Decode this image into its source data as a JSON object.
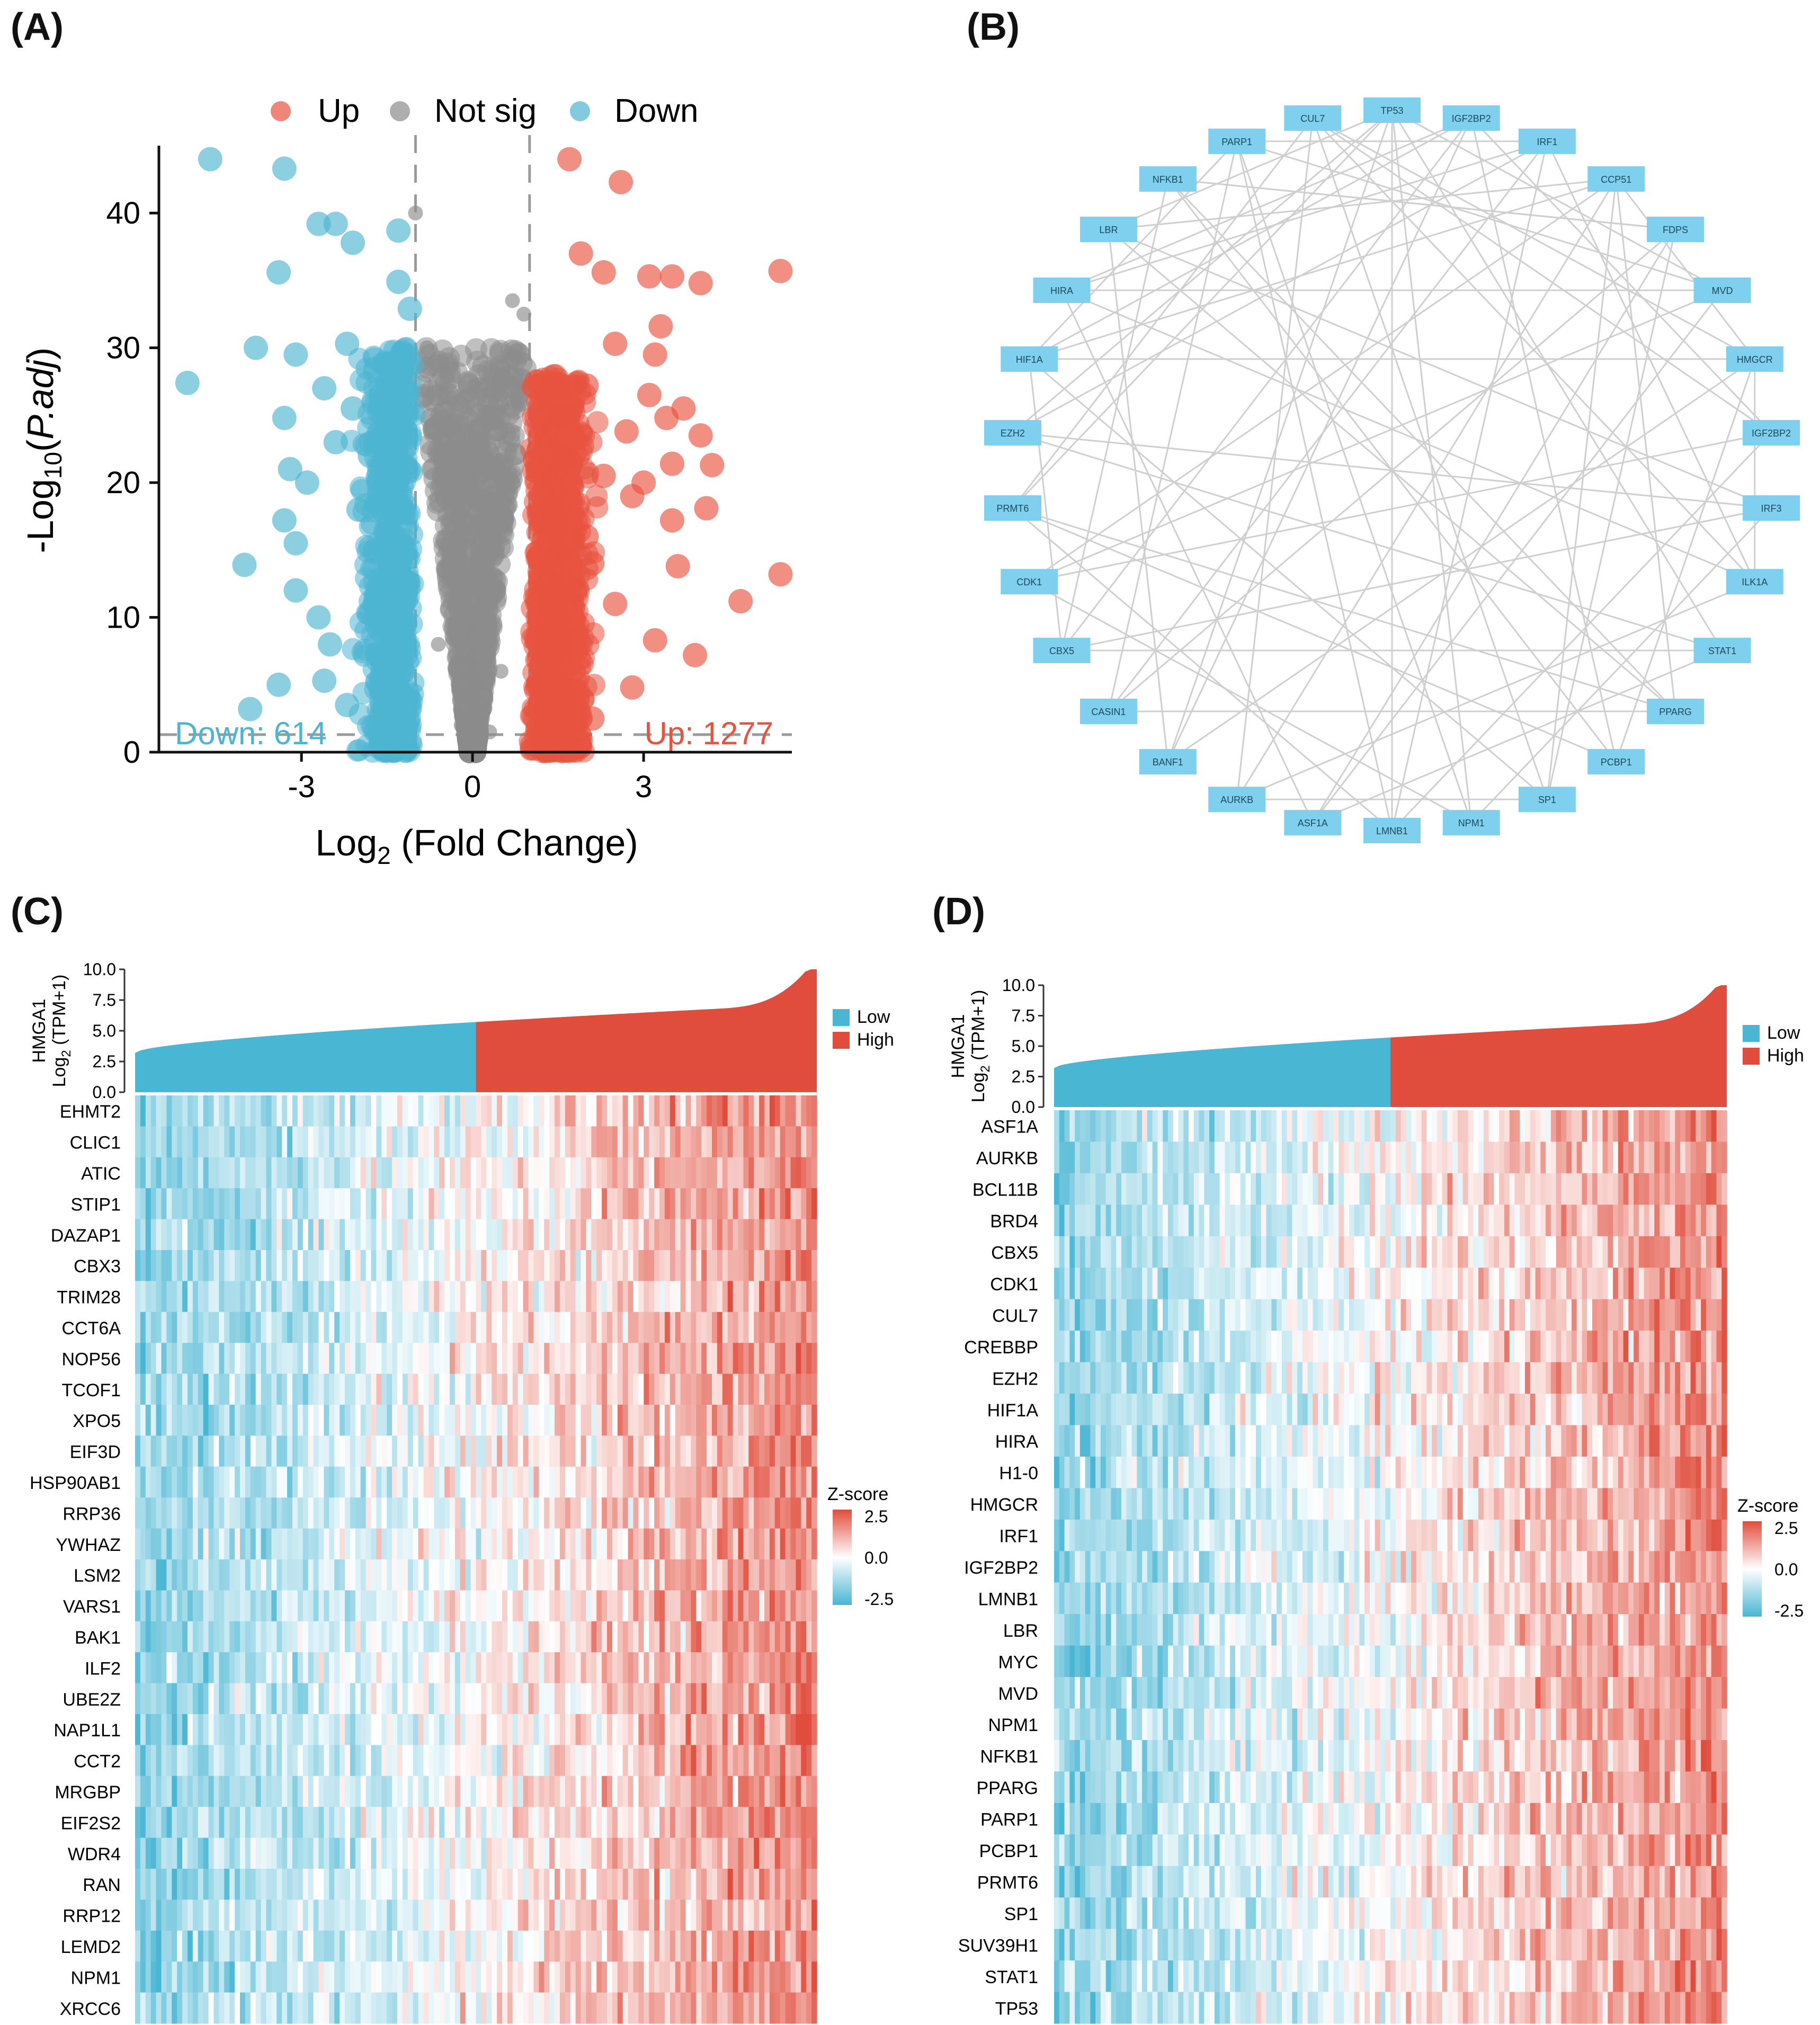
{
  "panel_tags": {
    "a": "(A)",
    "b": "(B)",
    "c": "(C)",
    "d": "(D)"
  },
  "colors": {
    "up": "#E8533F",
    "not_sig": "#8C8C8C",
    "down": "#4DB5D1",
    "low": "#49B6D3",
    "high": "#E04D3C",
    "node": "#7FCFEF"
  },
  "chart_data": [
    {
      "id": "volcano",
      "type": "scatter",
      "legend": {
        "items": [
          "Up",
          "Not sig",
          "Down"
        ],
        "placement": "top"
      },
      "xlabel_base": "Log",
      "xlabel_sub": "2",
      "xlabel_rest": " (Fold Change)",
      "ylabel_base": "-Log",
      "ylabel_sub": "10",
      "ylabel_rest": "P.adj",
      "xlim": [
        -5.5,
        5.6
      ],
      "ylim": [
        0,
        45
      ],
      "xticks": [
        -3,
        0,
        3
      ],
      "yticks": [
        0,
        10,
        20,
        30,
        40
      ],
      "thresholds": {
        "x": [
          -1,
          1
        ],
        "y": 1.3
      },
      "annotations": {
        "down": "Down: 614",
        "up": "Up: 1277"
      },
      "grid": false,
      "series": [
        {
          "name": "Up",
          "points": [
            [
              1.7,
              44
            ],
            [
              2.6,
              42.3
            ],
            [
              1.9,
              37
            ],
            [
              2.3,
              35.6
            ],
            [
              3.1,
              35.3
            ],
            [
              3.5,
              35.3
            ],
            [
              4.0,
              34.8
            ],
            [
              5.4,
              35.7
            ],
            [
              3.3,
              31.6
            ],
            [
              2.5,
              30.3
            ],
            [
              3.2,
              29.5
            ],
            [
              2.0,
              27.2
            ],
            [
              3.1,
              26.5
            ],
            [
              3.7,
              25.5
            ],
            [
              3.4,
              24.8
            ],
            [
              4.0,
              23.5
            ],
            [
              4.2,
              21.3
            ],
            [
              3.5,
              21.4
            ],
            [
              4.1,
              18.1
            ],
            [
              2.8,
              19.0
            ],
            [
              3.5,
              17.2
            ],
            [
              2.0,
              16.0
            ],
            [
              3.6,
              13.8
            ],
            [
              5.4,
              13.2
            ],
            [
              4.7,
              11.2
            ],
            [
              3.2,
              8.3
            ],
            [
              3.9,
              7.2
            ],
            [
              2.8,
              4.8
            ],
            [
              2.1,
              2.5
            ],
            [
              1.6,
              22.0
            ],
            [
              1.4,
              17.0
            ],
            [
              1.8,
              12.0
            ],
            [
              1.3,
              9.0
            ],
            [
              2.3,
              20.5
            ],
            [
              2.7,
              23.8
            ],
            [
              1.5,
              27.0
            ],
            [
              2.1,
              14.0
            ],
            [
              2.5,
              11.0
            ],
            [
              3.0,
              20.0
            ],
            [
              1.2,
              5.0
            ],
            [
              1.6,
              25.0
            ]
          ]
        },
        {
          "name": "Not sig",
          "points": [
            [
              -1.0,
              40
            ],
            [
              -0.8,
              30
            ],
            [
              0.7,
              33.5
            ],
            [
              0.9,
              32.5
            ],
            [
              0.5,
              26.5
            ],
            [
              0.8,
              26
            ],
            [
              -0.5,
              22
            ],
            [
              0.3,
              20
            ],
            [
              -0.3,
              15
            ],
            [
              0.2,
              12
            ],
            [
              0,
              4
            ],
            [
              0.5,
              6
            ],
            [
              -0.6,
              8
            ],
            [
              -0.2,
              2
            ],
            [
              0.3,
              1.5
            ]
          ]
        },
        {
          "name": "Down",
          "points": [
            [
              -4.6,
              44
            ],
            [
              -3.3,
              43.3
            ],
            [
              -2.7,
              39.2
            ],
            [
              -2.4,
              39.2
            ],
            [
              -2.1,
              37.8
            ],
            [
              -1.3,
              38.7
            ],
            [
              -3.4,
              35.6
            ],
            [
              -1.3,
              34.9
            ],
            [
              -1.1,
              32.9
            ],
            [
              -3.8,
              30.0
            ],
            [
              -5.0,
              27.4
            ],
            [
              -2.2,
              30.3
            ],
            [
              -3.1,
              29.5
            ],
            [
              -1.5,
              28.8
            ],
            [
              -2.6,
              27.0
            ],
            [
              -3.3,
              24.8
            ],
            [
              -2.4,
              23.0
            ],
            [
              -3.2,
              21.0
            ],
            [
              -3.3,
              17.2
            ],
            [
              -3.1,
              15.5
            ],
            [
              -4.0,
              13.9
            ],
            [
              -3.1,
              12.0
            ],
            [
              -2.7,
              10.0
            ],
            [
              -2.5,
              8.0
            ],
            [
              -3.4,
              5.0
            ],
            [
              -3.9,
              3.2
            ],
            [
              -2.6,
              5.3
            ],
            [
              -2.2,
              3.5
            ],
            [
              -1.8,
              22.0
            ],
            [
              -1.5,
              20.0
            ],
            [
              -1.7,
              15.0
            ],
            [
              -1.4,
              12.0
            ],
            [
              -2.0,
              18.0
            ],
            [
              -1.6,
              26.0
            ],
            [
              -2.9,
              20.0
            ],
            [
              -2.1,
              25.5
            ]
          ]
        }
      ]
    },
    {
      "id": "network",
      "type": "network",
      "nodes": [
        "TP53",
        "IGF2BP2",
        "IRF1",
        "CCP51",
        "FDPS",
        "MVD",
        "HMGCR",
        "IGF2BP2",
        "IRF3",
        "ILK1A",
        "STAT1",
        "PPARG",
        "PCBP1",
        "SP1",
        "NPM1",
        "LMNB1",
        "ASF1A",
        "AURKB",
        "BANF1",
        "CASIN1",
        "CBX5",
        "CDK1",
        "PRMT6",
        "EZH2",
        "HIF1A",
        "HIRA",
        "LBR",
        "NFKB1",
        "PARP1",
        "CUL7"
      ],
      "edges": [
        [
          0,
          5
        ],
        [
          0,
          10
        ],
        [
          0,
          14
        ],
        [
          0,
          18
        ],
        [
          0,
          22
        ],
        [
          0,
          26
        ],
        [
          1,
          7
        ],
        [
          1,
          12
        ],
        [
          1,
          20
        ],
        [
          1,
          25
        ],
        [
          2,
          9
        ],
        [
          2,
          15
        ],
        [
          2,
          23
        ],
        [
          2,
          28
        ],
        [
          3,
          11
        ],
        [
          3,
          17
        ],
        [
          3,
          24
        ],
        [
          4,
          13
        ],
        [
          4,
          19
        ],
        [
          4,
          27
        ],
        [
          5,
          16
        ],
        [
          5,
          21
        ],
        [
          6,
          12
        ],
        [
          6,
          18
        ],
        [
          6,
          24
        ],
        [
          7,
          15
        ],
        [
          7,
          21
        ],
        [
          8,
          14
        ],
        [
          8,
          20
        ],
        [
          8,
          26
        ],
        [
          9,
          17
        ],
        [
          9,
          25
        ],
        [
          10,
          16
        ],
        [
          10,
          23
        ],
        [
          11,
          19
        ],
        [
          11,
          27
        ],
        [
          12,
          22
        ],
        [
          13,
          24
        ],
        [
          13,
          29
        ],
        [
          14,
          21
        ],
        [
          15,
          28
        ],
        [
          16,
          25
        ],
        [
          17,
          29
        ],
        [
          18,
          26
        ],
        [
          19,
          28
        ],
        [
          20,
          27
        ],
        [
          22,
          29
        ],
        [
          23,
          0
        ],
        [
          24,
          1
        ],
        [
          25,
          2
        ],
        [
          26,
          3
        ],
        [
          27,
          4
        ],
        [
          28,
          5
        ],
        [
          29,
          6
        ],
        [
          0,
          15
        ],
        [
          5,
          25
        ],
        [
          10,
          20
        ],
        [
          14,
          28
        ],
        [
          3,
          21
        ],
        [
          7,
          29
        ],
        [
          11,
          26
        ],
        [
          2,
          19
        ],
        [
          6,
          9
        ],
        [
          12,
          27
        ],
        [
          4,
          16
        ],
        [
          8,
          23
        ],
        [
          1,
          18
        ],
        [
          13,
          17
        ],
        [
          20,
          24
        ],
        [
          22,
          11
        ],
        [
          3,
          13
        ],
        [
          9,
          29
        ],
        [
          15,
          22
        ],
        [
          6,
          3
        ],
        [
          24,
          28
        ]
      ]
    },
    {
      "id": "heatmap_c",
      "type": "heatmap",
      "annotation_label_1": "HMGA1",
      "annotation_label_2_base": "Log",
      "annotation_label_2_sub": "2",
      "annotation_label_2_rest": " (TPM+1)",
      "annotation_ticks": [
        "10.0",
        "7.5",
        "5.0",
        "2.5",
        "0.0"
      ],
      "annotation_range": [
        0,
        10
      ],
      "low_fraction": 0.5,
      "legend_groups": [
        "Low",
        "High"
      ],
      "colorbar_title": "Z-score",
      "colorbar_ticks": [
        "2.5",
        "0.0",
        "-2.5"
      ],
      "rows": [
        "EHMT2",
        "CLIC1",
        "ATIC",
        "STIP1",
        "DAZAP1",
        "CBX3",
        "TRIM28",
        "CCT6A",
        "NOP56",
        "TCOF1",
        "XPO5",
        "EIF3D",
        "HSP90AB1",
        "RRP36",
        "YWHAZ",
        "LSM2",
        "VARS1",
        "BAK1",
        "ILF2",
        "UBE2Z",
        "NAP1L1",
        "CCT2",
        "MRGBP",
        "EIF2S2",
        "WDR4",
        "RAN",
        "RRP12",
        "LEMD2",
        "NPM1",
        "XRCC6"
      ]
    },
    {
      "id": "heatmap_d",
      "type": "heatmap",
      "annotation_label_1": "HMGA1",
      "annotation_label_2_base": "Log",
      "annotation_label_2_sub": "2",
      "annotation_label_2_rest": " (TPM+1)",
      "annotation_ticks": [
        "10.0",
        "7.5",
        "5.0",
        "2.5",
        "0.0"
      ],
      "annotation_range": [
        0,
        10
      ],
      "low_fraction": 0.5,
      "legend_groups": [
        "Low",
        "High"
      ],
      "colorbar_title": "Z-score",
      "colorbar_ticks": [
        "2.5",
        "0.0",
        "-2.5"
      ],
      "rows": [
        "ASF1A",
        "AURKB",
        "BCL11B",
        "BRD4",
        "CBX5",
        "CDK1",
        "CUL7",
        "CREBBP",
        "EZH2",
        "HIF1A",
        "HIRA",
        "H1-0",
        "HMGCR",
        "IRF1",
        "IGF2BP2",
        "LMNB1",
        "LBR",
        "MYC",
        "MVD",
        "NPM1",
        "NFKB1",
        "PPARG",
        "PARP1",
        "PCBP1",
        "PRMT6",
        "SP1",
        "SUV39H1",
        "STAT1",
        "TP53"
      ]
    }
  ]
}
